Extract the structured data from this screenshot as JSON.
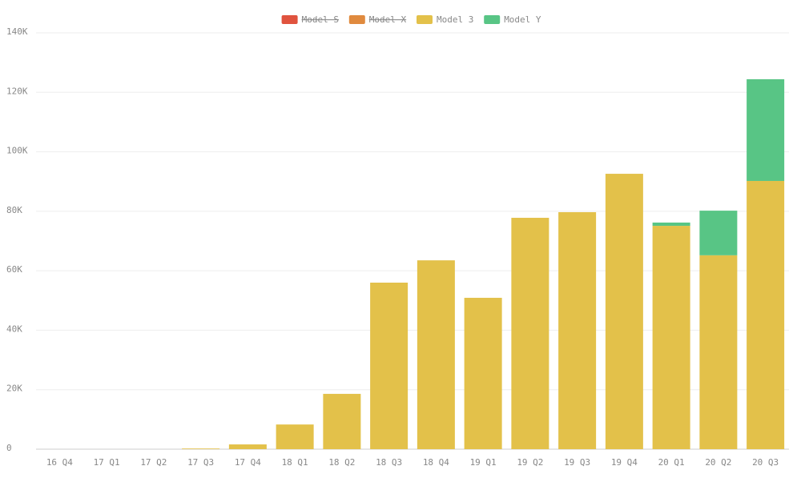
{
  "chart_data": {
    "type": "stacked-bar",
    "categories": [
      "16 Q4",
      "17 Q1",
      "17 Q2",
      "17 Q3",
      "17 Q4",
      "18 Q1",
      "18 Q2",
      "18 Q3",
      "18 Q4",
      "19 Q1",
      "19 Q2",
      "19 Q3",
      "19 Q4",
      "20 Q1",
      "20 Q2",
      "20 Q3"
    ],
    "series": [
      {
        "name": "Model S",
        "color": "#e0533e",
        "hidden": true,
        "values": [
          null,
          null,
          null,
          null,
          null,
          null,
          null,
          null,
          null,
          null,
          null,
          null,
          null,
          null,
          null,
          null
        ]
      },
      {
        "name": "Model X",
        "color": "#e08a3e",
        "hidden": true,
        "values": [
          null,
          null,
          null,
          null,
          null,
          null,
          null,
          null,
          null,
          null,
          null,
          null,
          null,
          null,
          null,
          null
        ]
      },
      {
        "name": "Model 3",
        "color": "#e3c14a",
        "values": [
          0,
          0,
          0,
          220,
          1600,
          8300,
          18600,
          56000,
          63500,
          50900,
          77800,
          79700,
          92600,
          75100,
          65200,
          90200
        ]
      },
      {
        "name": "Model Y",
        "color": "#58c585",
        "values": [
          null,
          null,
          null,
          null,
          null,
          null,
          null,
          null,
          null,
          null,
          null,
          null,
          null,
          1100,
          15000,
          34200
        ]
      }
    ],
    "ylim": [
      0,
      140000
    ],
    "yticks": [
      0,
      {
        "value": 20000,
        "label": "20K"
      },
      {
        "value": 40000,
        "label": "40K"
      },
      {
        "value": 60000,
        "label": "60K"
      },
      {
        "value": 80000,
        "label": "80K"
      },
      {
        "value": 100000,
        "label": "100K"
      },
      {
        "value": 120000,
        "label": "120K"
      },
      {
        "value": 140000,
        "label": "140K"
      }
    ],
    "grid": true
  }
}
